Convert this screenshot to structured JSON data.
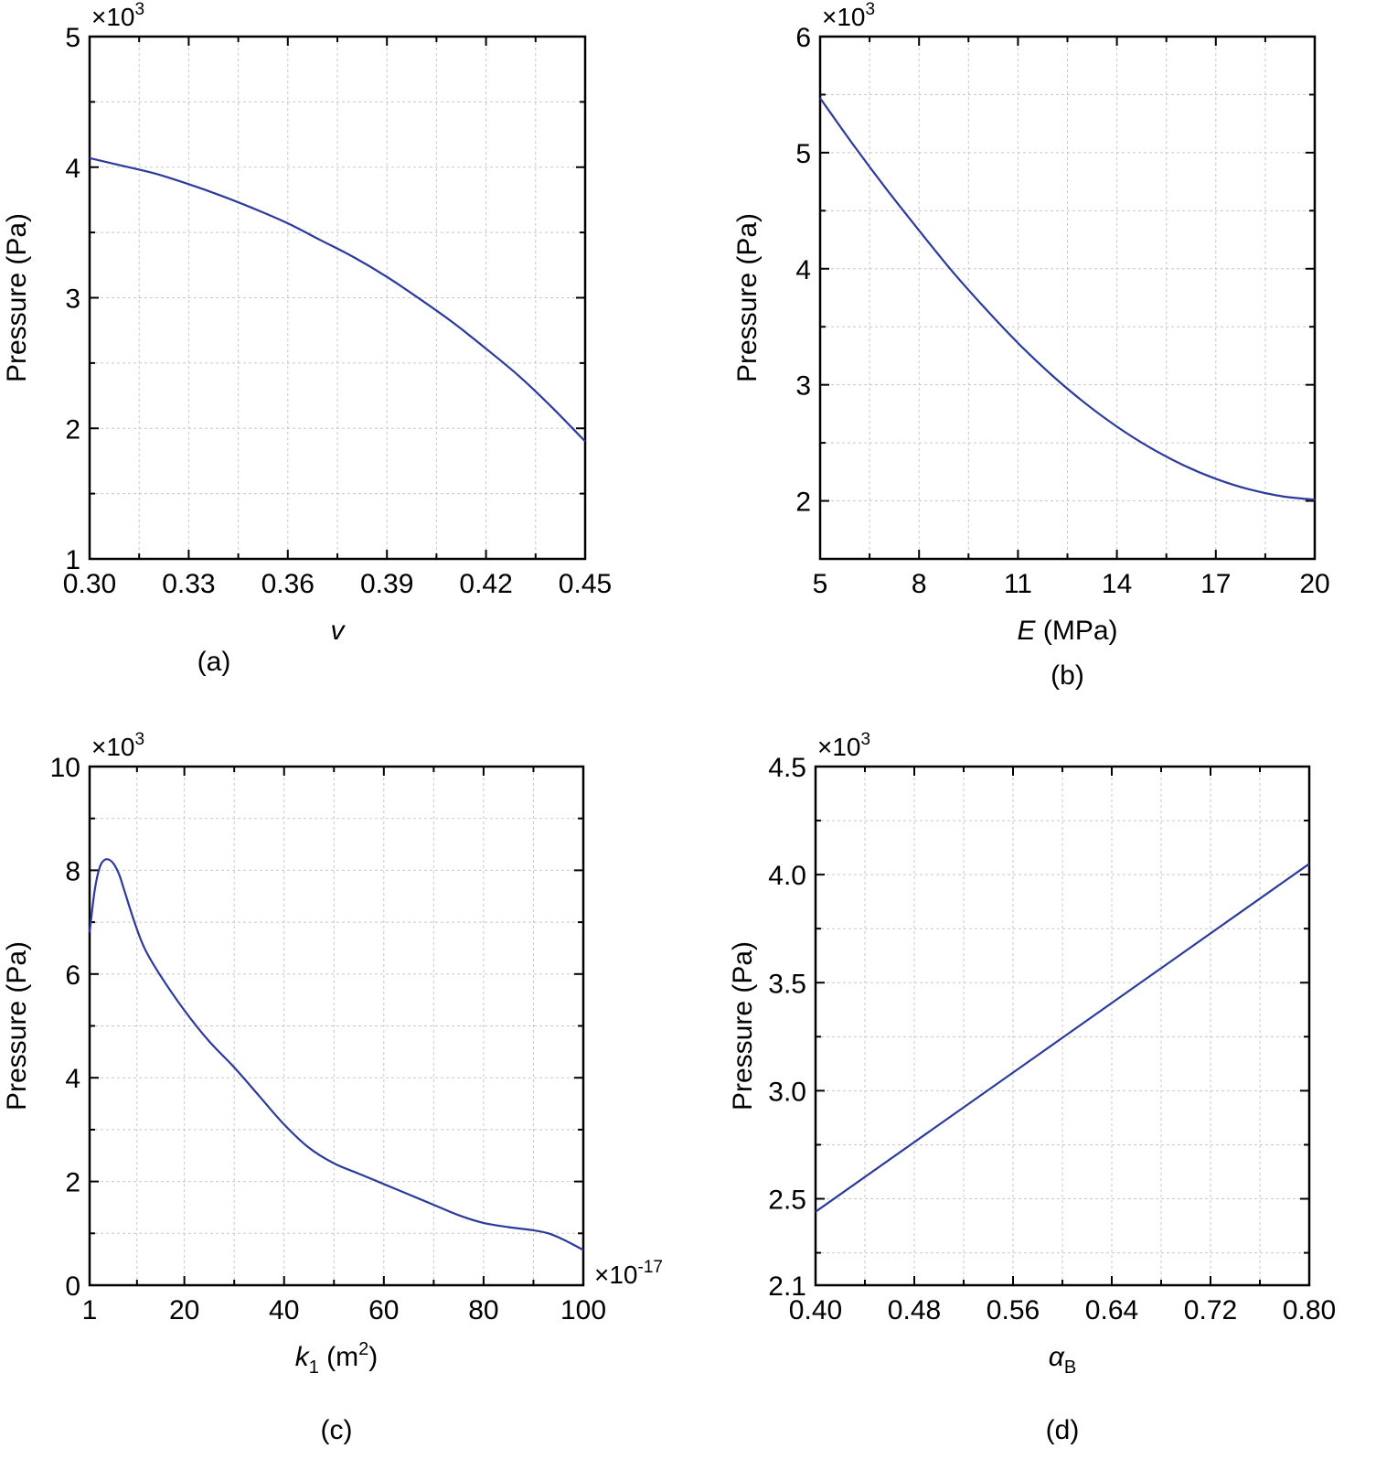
{
  "chart_data": [
    {
      "type": "line",
      "panel_label": "(a)",
      "xlabel": "v",
      "xlabel_italic": true,
      "ylabel": "Pressure (Pa)",
      "y_multiplier": "×10",
      "y_multiplier_exp": "3",
      "xlim": [
        0.3,
        0.45
      ],
      "ylim": [
        1,
        5
      ],
      "xticks": [
        0.3,
        0.33,
        0.36,
        0.39,
        0.42,
        0.45
      ],
      "xtick_labels": [
        "0.30",
        "0.33",
        "0.36",
        "0.39",
        "0.42",
        "0.45"
      ],
      "yticks": [
        1,
        2,
        3,
        4,
        5
      ],
      "ytick_labels": [
        "1",
        "2",
        "3",
        "4",
        "5"
      ],
      "grid": true,
      "line_color": "#2b3a9c",
      "series": [
        {
          "name": "Pressure",
          "x": [
            0.3,
            0.31,
            0.32,
            0.33,
            0.34,
            0.35,
            0.36,
            0.37,
            0.38,
            0.39,
            0.4,
            0.41,
            0.42,
            0.43,
            0.44,
            0.45
          ],
          "y": [
            4.07,
            4.01,
            3.95,
            3.87,
            3.78,
            3.68,
            3.57,
            3.44,
            3.31,
            3.16,
            2.99,
            2.81,
            2.61,
            2.4,
            2.16,
            1.9
          ]
        }
      ]
    },
    {
      "type": "line",
      "panel_label": "(b)",
      "xlabel": "E",
      "xlabel_italic": true,
      "xlabel_suffix": " (MPa)",
      "ylabel": "Pressure (Pa)",
      "y_multiplier": "×10",
      "y_multiplier_exp": "3",
      "xlim": [
        5,
        20
      ],
      "ylim": [
        1.5,
        6
      ],
      "xticks": [
        5,
        8,
        11,
        14,
        17,
        20
      ],
      "xtick_labels": [
        "5",
        "8",
        "11",
        "14",
        "17",
        "20"
      ],
      "yticks": [
        2,
        3,
        4,
        5,
        6
      ],
      "ytick_labels": [
        "2",
        "3",
        "4",
        "5",
        "6"
      ],
      "grid": true,
      "line_color": "#2b3a9c",
      "series": [
        {
          "name": "Pressure",
          "x": [
            5,
            6,
            7,
            8,
            9,
            10,
            11,
            12,
            13,
            14,
            15,
            16,
            17,
            18,
            19,
            20
          ],
          "y": [
            5.47,
            5.07,
            4.69,
            4.33,
            3.98,
            3.66,
            3.36,
            3.09,
            2.85,
            2.64,
            2.46,
            2.31,
            2.19,
            2.1,
            2.04,
            2.01
          ]
        }
      ]
    },
    {
      "type": "line",
      "panel_label": "(c)",
      "xlabel": "k",
      "xlabel_italic": true,
      "xlabel_sub": "1",
      "xlabel_suffix": " (m",
      "xlabel_sup": "2",
      "xlabel_end": ")",
      "ylabel": "Pressure (Pa)",
      "y_multiplier": "×10",
      "y_multiplier_exp": "3",
      "x_multiplier": "×10",
      "x_multiplier_exp": "-17",
      "xlim": [
        1,
        100
      ],
      "ylim": [
        0,
        10
      ],
      "xticks": [
        1,
        20,
        40,
        60,
        80,
        100
      ],
      "xtick_labels": [
        "1",
        "20",
        "40",
        "60",
        "80",
        "100"
      ],
      "yticks": [
        0,
        2,
        4,
        6,
        8,
        10
      ],
      "ytick_labels": [
        "0",
        "2",
        "4",
        "6",
        "8",
        "10"
      ],
      "grid": true,
      "line_color": "#2b3a9c",
      "series": [
        {
          "name": "Pressure",
          "x": [
            1,
            2,
            3,
            4,
            5,
            6,
            7,
            8,
            10,
            12,
            15,
            20,
            25,
            30,
            35,
            40,
            45,
            50,
            55,
            60,
            65,
            70,
            75,
            80,
            85,
            90,
            93,
            96,
            100
          ],
          "y": [
            6.8,
            7.6,
            8.05,
            8.2,
            8.2,
            8.1,
            7.9,
            7.6,
            7.0,
            6.5,
            6.0,
            5.3,
            4.7,
            4.2,
            3.65,
            3.1,
            2.65,
            2.35,
            2.15,
            1.95,
            1.75,
            1.55,
            1.35,
            1.2,
            1.12,
            1.06,
            1.0,
            0.88,
            0.68
          ]
        }
      ]
    },
    {
      "type": "line",
      "panel_label": "(d)",
      "xlabel": "α",
      "xlabel_italic": true,
      "xlabel_sub": "B",
      "ylabel": "Pressure (Pa)",
      "y_multiplier": "×10",
      "y_multiplier_exp": "3",
      "xlim": [
        0.4,
        0.8
      ],
      "ylim": [
        2.1,
        4.5
      ],
      "xticks": [
        0.4,
        0.48,
        0.56,
        0.64,
        0.72,
        0.8
      ],
      "xtick_labels": [
        "0.40",
        "0.48",
        "0.56",
        "0.64",
        "0.72",
        "0.80"
      ],
      "yticks": [
        2.1,
        2.5,
        3.0,
        3.5,
        4.0,
        4.5
      ],
      "ytick_labels": [
        "2.1",
        "2.5",
        "3.0",
        "3.5",
        "4.0",
        "4.5"
      ],
      "grid": true,
      "line_color": "#2b3a9c",
      "series": [
        {
          "name": "Pressure",
          "x": [
            0.4,
            0.8
          ],
          "y": [
            2.44,
            4.05
          ]
        }
      ]
    }
  ]
}
